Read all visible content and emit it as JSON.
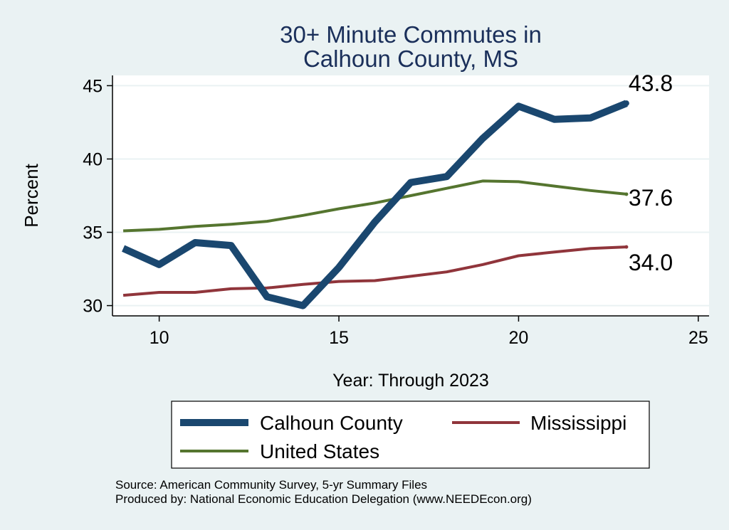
{
  "chart_data": {
    "type": "line",
    "title_lines": [
      "30+ Minute Commutes in",
      "Calhoun County, MS"
    ],
    "xlabel": "Year: Through 2023",
    "ylabel": "Percent",
    "xlim": [
      8.7,
      25.3
    ],
    "ylim": [
      29.3,
      45.7
    ],
    "xticks": [
      10,
      15,
      20,
      25
    ],
    "yticks": [
      30,
      35,
      40,
      45
    ],
    "x": [
      9,
      10,
      11,
      12,
      13,
      14,
      15,
      16,
      17,
      18,
      19,
      20,
      21,
      22,
      23
    ],
    "series": [
      {
        "name": "Calhoun County",
        "color": "#1a476f",
        "width": 10,
        "values": [
          33.9,
          32.8,
          34.3,
          34.1,
          30.6,
          30.0,
          32.6,
          35.7,
          38.4,
          38.8,
          41.4,
          43.6,
          42.7,
          42.8,
          43.8
        ]
      },
      {
        "name": "Mississippi",
        "color": "#90353b",
        "width": 4,
        "values": [
          30.7,
          30.9,
          30.9,
          31.15,
          31.2,
          31.45,
          31.65,
          31.7,
          32.0,
          32.3,
          32.8,
          33.4,
          33.65,
          33.9,
          34.0
        ]
      },
      {
        "name": "United States",
        "color": "#55752f",
        "width": 4,
        "values": [
          35.1,
          35.2,
          35.4,
          35.55,
          35.75,
          36.15,
          36.6,
          37.0,
          37.5,
          38.0,
          38.5,
          38.45,
          38.15,
          37.85,
          37.6
        ]
      }
    ],
    "end_labels": [
      {
        "series": "Calhoun County",
        "text": "43.8"
      },
      {
        "series": "United States",
        "text": "37.6"
      },
      {
        "series": "Mississippi",
        "text": "34.0"
      }
    ],
    "grid": true,
    "legend_position": "bottom"
  },
  "source_lines": [
    "Source: American Community Survey, 5-yr Summary Files",
    "Produced by: National Economic Education Delegation (www.NEEDEcon.org)"
  ]
}
